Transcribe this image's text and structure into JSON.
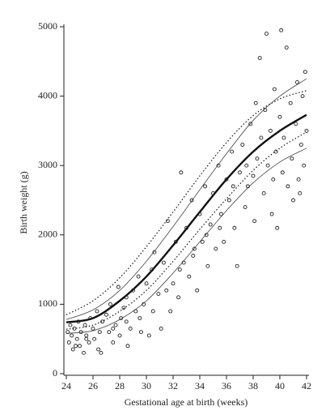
{
  "chart_data": {
    "type": "scatter",
    "xlabel": "Gestational age at birth (weeks)",
    "ylabel": "Birth weight (g)",
    "xlim": [
      24,
      42
    ],
    "ylim": [
      0,
      5000
    ],
    "xticks": [
      24,
      26,
      28,
      30,
      32,
      34,
      36,
      38,
      40,
      42
    ],
    "yticks": [
      0,
      1000,
      2000,
      3000,
      4000,
      5000
    ],
    "point_color": "#222222",
    "points": {
      "x": [
        24.1,
        24.2,
        24.3,
        24.4,
        24.5,
        24.6,
        24.8,
        24.9,
        25.0,
        25.1,
        25.3,
        25.4,
        25.5,
        25.7,
        25.8,
        26.0,
        26.1,
        26.3,
        26.4,
        26.6,
        26.7,
        27.0,
        27.2,
        27.3,
        27.5,
        27.7,
        27.9,
        28.0,
        28.1,
        28.3,
        28.5,
        28.6,
        28.8,
        29.0,
        29.2,
        29.4,
        29.6,
        29.8,
        30.0,
        30.2,
        30.4,
        30.6,
        30.9,
        31.1,
        31.3,
        31.6,
        31.8,
        32.0,
        32.2,
        32.4,
        32.6,
        32.8,
        33.0,
        33.2,
        33.4,
        33.6,
        33.8,
        34.0,
        34.2,
        34.4,
        34.6,
        34.8,
        35.0,
        35.2,
        35.4,
        35.6,
        35.8,
        36.0,
        36.2,
        36.4,
        36.6,
        36.8,
        37.0,
        37.2,
        37.4,
        37.6,
        37.8,
        38.0,
        38.1,
        38.3,
        38.5,
        38.6,
        38.8,
        38.9,
        39.0,
        39.1,
        39.3,
        39.4,
        39.6,
        39.7,
        39.8,
        40.0,
        40.1,
        40.2,
        40.3,
        40.5,
        40.6,
        40.8,
        40.9,
        41.0,
        41.2,
        41.3,
        41.4,
        41.6,
        41.7,
        41.8,
        41.9,
        42.0,
        41.5,
        39.5,
        38.2,
        37.5,
        36.5,
        35.5,
        34.5,
        33.5,
        32.5,
        31.5,
        30.5,
        29.5,
        28.5,
        27.5,
        26.5,
        25.5,
        24.7
      ],
      "y": [
        600,
        450,
        700,
        550,
        350,
        650,
        500,
        750,
        400,
        600,
        300,
        700,
        550,
        450,
        800,
        650,
        500,
        900,
        350,
        300,
        750,
        850,
        600,
        1000,
        450,
        700,
        1250,
        550,
        800,
        950,
        1100,
        400,
        650,
        1200,
        900,
        1400,
        600,
        1000,
        1300,
        550,
        1500,
        1750,
        1150,
        650,
        1600,
        2200,
        900,
        1300,
        1900,
        1100,
        2900,
        1600,
        2100,
        1400,
        2500,
        1800,
        1200,
        2300,
        1900,
        2700,
        1550,
        2150,
        2600,
        1800,
        3000,
        2300,
        1900,
        2800,
        2500,
        3200,
        2100,
        1550,
        2900,
        3300,
        2400,
        2700,
        3600,
        2850,
        2200,
        3100,
        4550,
        3400,
        2600,
        3800,
        4900,
        3000,
        3500,
        2300,
        4100,
        3200,
        2100,
        3700,
        4950,
        2900,
        3400,
        4700,
        2700,
        3900,
        3100,
        2500,
        3600,
        4200,
        2800,
        3300,
        4000,
        3000,
        4350,
        3500,
        2600,
        2800,
        3900,
        3000,
        2700,
        2100,
        2000,
        1700,
        1500,
        1200,
        900,
        800,
        750,
        650,
        600,
        500,
        400
      ]
    },
    "curve_x": [
      24,
      26,
      28,
      30,
      32,
      34,
      36,
      38,
      40,
      42
    ],
    "curves": [
      {
        "values": [
          850,
          1050,
          1380,
          1830,
          2330,
          2850,
          3330,
          3720,
          3960,
          4080
        ],
        "dash": "dotted",
        "width": 1.3,
        "color": "#222222"
      },
      {
        "values": [
          780,
          920,
          1200,
          1620,
          2120,
          2650,
          3170,
          3650,
          4000,
          4250
        ],
        "dash": "solid",
        "width": 0.8,
        "color": "#444444"
      },
      {
        "values": [
          740,
          800,
          1050,
          1400,
          1850,
          2330,
          2800,
          3200,
          3500,
          3730
        ],
        "dash": "solid",
        "width": 2.4,
        "color": "#111111"
      },
      {
        "values": [
          640,
          700,
          900,
          1200,
          1620,
          2080,
          2520,
          2930,
          3250,
          3480
        ],
        "dash": "dotted",
        "width": 1.3,
        "color": "#222222"
      },
      {
        "values": [
          580,
          620,
          780,
          1050,
          1450,
          1900,
          2350,
          2750,
          3050,
          3250
        ],
        "dash": "solid",
        "width": 0.8,
        "color": "#444444"
      }
    ]
  }
}
